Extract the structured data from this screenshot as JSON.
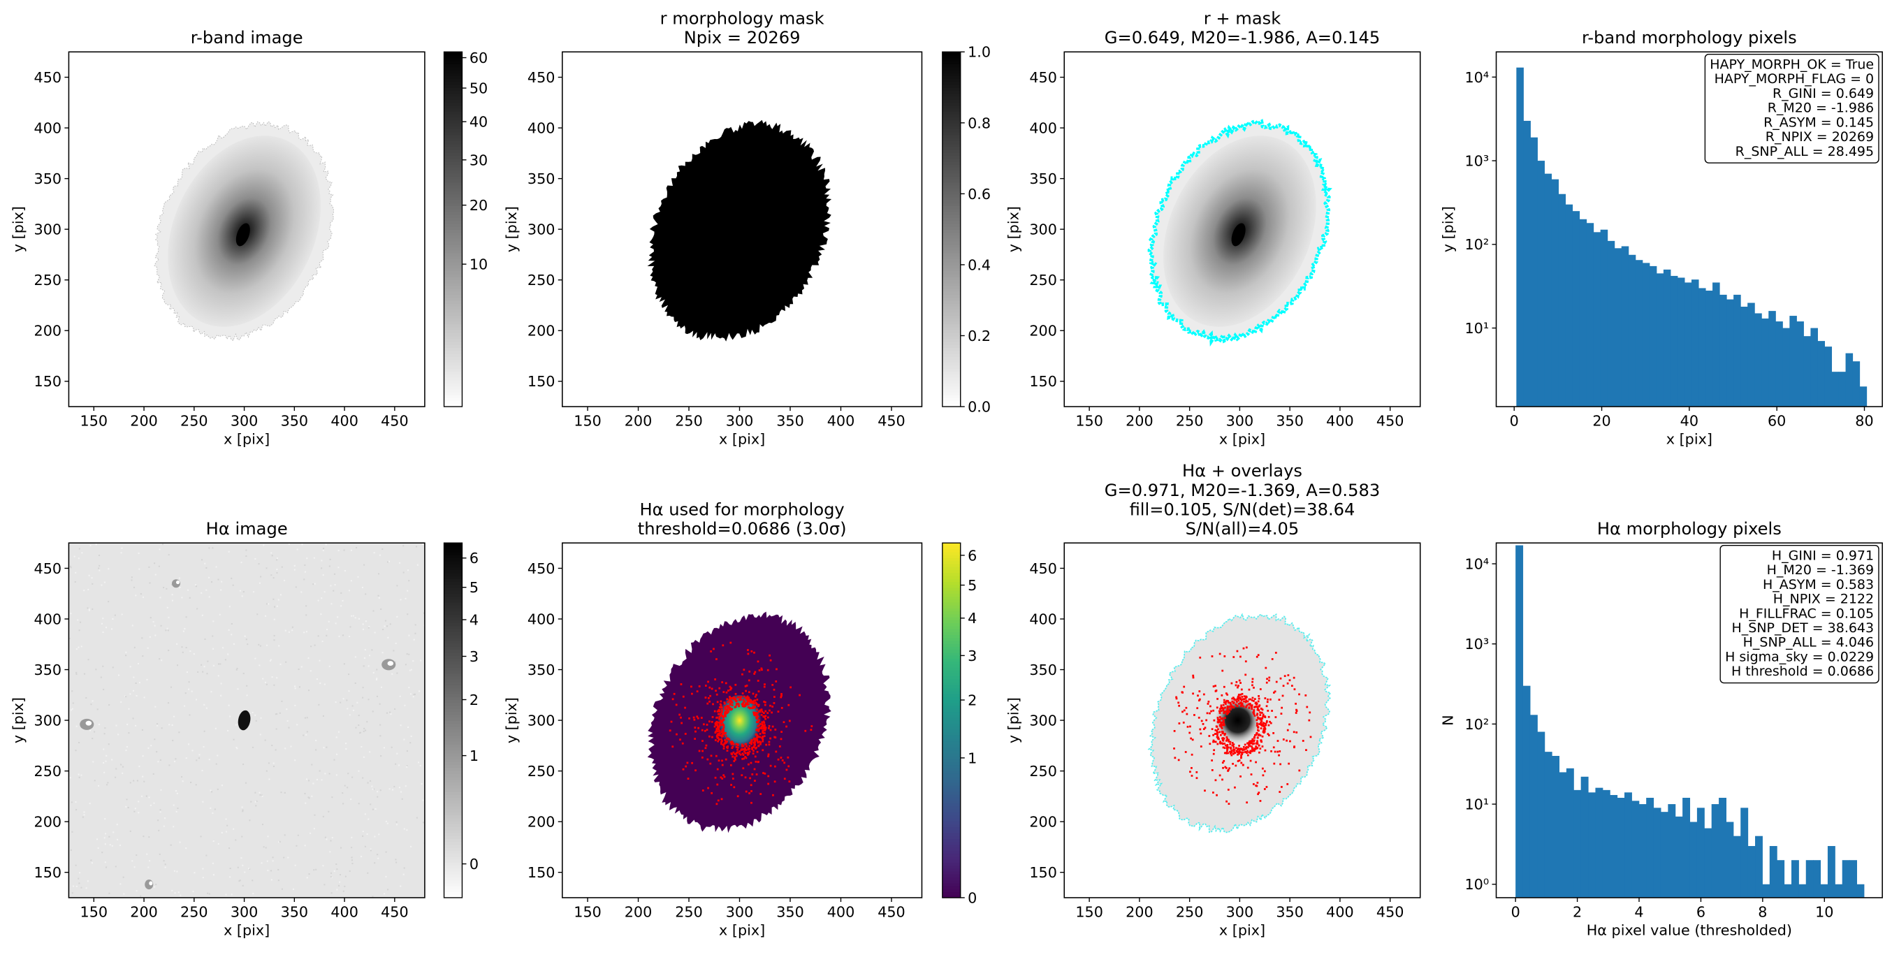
{
  "chart_data": [
    {
      "type": "image",
      "title": [
        "r-band image"
      ],
      "xlabel": "x [pix]",
      "ylabel": "y [pix]",
      "xlim": [
        125,
        480
      ],
      "ylim": [
        125,
        475
      ],
      "xticks": [
        150,
        200,
        250,
        300,
        350,
        400,
        450
      ],
      "yticks": [
        150,
        200,
        250,
        300,
        350,
        400,
        450
      ],
      "cmap": "gray_r",
      "colorbar": {
        "lim": [
          0,
          62
        ],
        "scale": "sqrt",
        "ticks": [
          10,
          20,
          30,
          40,
          50,
          60
        ]
      }
    },
    {
      "type": "image",
      "title": [
        "r morphology mask",
        "Npix = 20269"
      ],
      "xlabel": "x [pix]",
      "ylabel": "y [pix]",
      "xlim": [
        125,
        480
      ],
      "ylim": [
        125,
        475
      ],
      "xticks": [
        150,
        200,
        250,
        300,
        350,
        400,
        450
      ],
      "yticks": [
        150,
        200,
        250,
        300,
        350,
        400,
        450
      ],
      "cmap": "gray_r",
      "colorbar": {
        "lim": [
          0,
          1
        ],
        "scale": "linear",
        "ticks": [
          {
            "value": 0,
            "label": "0.0"
          },
          0.2,
          0.4,
          0.6,
          0.8,
          {
            "value": 1,
            "label": "1.0"
          }
        ]
      }
    },
    {
      "type": "image",
      "title": [
        "r + mask",
        "G=0.649, M20=-1.986, A=0.145"
      ],
      "xlabel": "x [pix]",
      "ylabel": "y [pix]",
      "xlim": [
        125,
        480
      ],
      "ylim": [
        125,
        475
      ],
      "xticks": [
        150,
        200,
        250,
        300,
        350,
        400,
        450
      ],
      "yticks": [
        150,
        200,
        250,
        300,
        350,
        400,
        450
      ],
      "cmap": "gray_r",
      "overlay_color": "#00ffff"
    },
    {
      "type": "histogram",
      "title": [
        "r-band morphology pixels"
      ],
      "xlabel": "x [pix]",
      "ylabel": "y [pix]",
      "color": "#1f77b4",
      "yscale": "log",
      "bins": [
        0.5,
        2.1,
        3.7,
        5.3,
        6.9,
        8.5,
        10.1,
        11.7,
        13.3,
        14.9,
        16.5,
        18.1,
        19.7,
        21.3,
        22.9,
        24.5,
        26.1,
        27.7,
        29.3,
        30.9,
        32.5,
        34.1,
        35.7,
        37.3,
        38.9,
        40.5,
        42.1,
        43.7,
        45.3,
        46.9,
        48.5,
        50.1,
        51.7,
        53.3,
        54.9,
        56.5,
        58.1,
        59.7,
        61.3,
        62.9,
        64.5,
        66.1,
        67.7,
        69.3,
        70.9,
        72.5,
        74.1,
        75.7,
        77.3,
        78.9,
        80.5
      ],
      "values": [
        13000,
        3000,
        1900,
        1000,
        700,
        600,
        400,
        300,
        250,
        200,
        180,
        140,
        150,
        110,
        90,
        95,
        75,
        65,
        60,
        55,
        45,
        50,
        42,
        40,
        35,
        38,
        30,
        28,
        35,
        25,
        22,
        25,
        18,
        20,
        15,
        13,
        16,
        12,
        10,
        14,
        12,
        8,
        10,
        7,
        6,
        3,
        3,
        5,
        4,
        2
      ],
      "xlim": [
        -4.1,
        84.1
      ],
      "ylim": [
        1.15,
        20000
      ],
      "xticks": [
        0,
        20,
        40,
        60,
        80
      ],
      "yticks": [
        {
          "value": 10,
          "label": "10¹"
        },
        {
          "value": 100,
          "label": "10²"
        },
        {
          "value": 1000,
          "label": "10³"
        },
        {
          "value": 10000,
          "label": "10⁴"
        }
      ],
      "annotation": [
        "HAPY_MORPH_OK = True",
        "HAPY_MORPH_FLAG = 0",
        "R_GINI = 0.649",
        "R_M20 = -1.986",
        "R_ASYM = 0.145",
        "R_NPIX = 20269",
        "R_SNP_ALL = 28.495"
      ]
    },
    {
      "type": "image",
      "title": [
        "Hα image"
      ],
      "xlabel": "x [pix]",
      "ylabel": "y [pix]",
      "xlim": [
        125,
        480
      ],
      "ylim": [
        125,
        475
      ],
      "xticks": [
        150,
        200,
        250,
        300,
        350,
        400,
        450
      ],
      "yticks": [
        150,
        200,
        250,
        300,
        350,
        400,
        450
      ],
      "cmap": "gray_r",
      "colorbar": {
        "lim": [
          -0.06,
          6.55
        ],
        "scale": "sqrt",
        "ticks": [
          0,
          1,
          2,
          3,
          4,
          5,
          6
        ]
      }
    },
    {
      "type": "image",
      "title": [
        "Hα used for morphology",
        "threshold=0.0686 (3.0σ)"
      ],
      "xlabel": "x [pix]",
      "ylabel": "y [pix]",
      "xlim": [
        125,
        480
      ],
      "ylim": [
        125,
        475
      ],
      "xticks": [
        150,
        200,
        250,
        300,
        350,
        400,
        450
      ],
      "yticks": [
        150,
        200,
        250,
        300,
        350,
        400,
        450
      ],
      "cmap": "viridis",
      "points_color": "#ff0000",
      "colorbar": {
        "lim": [
          0,
          6.44
        ],
        "scale": "sqrt",
        "ticks": [
          0,
          1,
          2,
          3,
          4,
          5,
          6
        ]
      }
    },
    {
      "type": "image",
      "title": [
        "Hα + overlays",
        "G=0.971, M20=-1.369, A=0.583",
        "fill=0.105, S/N(det)=38.64",
        "S/N(all)=4.05"
      ],
      "xlabel": "x [pix]",
      "ylabel": "y [pix]",
      "xlim": [
        125,
        480
      ],
      "ylim": [
        125,
        475
      ],
      "xticks": [
        150,
        200,
        250,
        300,
        350,
        400,
        450
      ],
      "yticks": [
        150,
        200,
        250,
        300,
        350,
        400,
        450
      ],
      "cmap": "gray_r",
      "overlay_color": "#55eeee",
      "points_color": "#ff0000"
    },
    {
      "type": "histogram",
      "title": [
        "Hα morphology pixels"
      ],
      "xlabel": "Hα pixel value (thresholded)",
      "ylabel": "N",
      "color": "#1f77b4",
      "yscale": "log",
      "bins": [
        0,
        0.235,
        0.47,
        0.705,
        0.94,
        1.175,
        1.41,
        1.645,
        1.88,
        2.115,
        2.35,
        2.585,
        2.82,
        3.055,
        3.29,
        3.525,
        3.76,
        3.995,
        4.23,
        4.465,
        4.7,
        4.935,
        5.17,
        5.405,
        5.64,
        5.875,
        6.11,
        6.345,
        6.58,
        6.815,
        7.05,
        7.285,
        7.52,
        7.755,
        7.99,
        8.225,
        8.46,
        8.695,
        8.93,
        9.165,
        9.4,
        9.635,
        9.87,
        10.105,
        10.34,
        10.575,
        10.81,
        11.045,
        11.28
      ],
      "values": [
        17000,
        300,
        130,
        80,
        45,
        40,
        25,
        28,
        15,
        22,
        14,
        16,
        15,
        13,
        12,
        14,
        11,
        10,
        12,
        9,
        8,
        10,
        7,
        12,
        6,
        9,
        5,
        10,
        12,
        6,
        4,
        9,
        3,
        4,
        1,
        3,
        2,
        1,
        2,
        1,
        2,
        2,
        1,
        3,
        1,
        2,
        2,
        1
      ],
      "xlim": [
        -0.625,
        11.875
      ],
      "ylim": [
        0.68,
        18200
      ],
      "xticks": [
        0,
        2,
        4,
        6,
        8,
        10
      ],
      "yticks": [
        {
          "value": 1,
          "label": "10⁰"
        },
        {
          "value": 10,
          "label": "10¹"
        },
        {
          "value": 100,
          "label": "10²"
        },
        {
          "value": 1000,
          "label": "10³"
        },
        {
          "value": 10000,
          "label": "10⁴"
        }
      ],
      "annotation": [
        "H_GINI = 0.971",
        "H_M20 = -1.369",
        "H_ASYM = 0.583",
        "H_NPIX = 2122",
        "H_FILLFRAC = 0.105",
        "H_SNP_DET = 38.643",
        "H_SNP_ALL = 4.046",
        "H sigma_sky = 0.0229",
        "H threshold = 0.0686"
      ]
    }
  ]
}
